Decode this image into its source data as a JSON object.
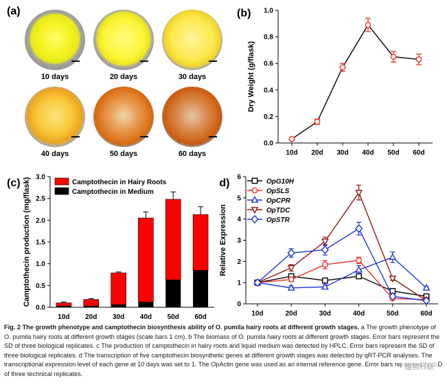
{
  "panel_a": {
    "letter": "(a)",
    "photos": [
      {
        "label": "10 days"
      },
      {
        "label": "20 days"
      },
      {
        "label": "30 days"
      },
      {
        "label": "40 days"
      },
      {
        "label": "50 days"
      },
      {
        "label": "60 days"
      }
    ]
  },
  "caption": {
    "fig": "Fig. 2",
    "title": "The growth phenotype and camptothecin biosynthesis ability of O. pumila hairy roots at different growth stages.",
    "text": "a The growth phenotype of O. pumila hairy roots at different growth stages (scale bars 1 cm). b The biomass of O. pumila hairy roots at different growth stages. Error bars represent the SD of three biological replicates. c The production of camptothecin in hairy roots and liquid medium was detected by HPLC. Error bars represent the SD of three biological replicates. d The transcription of five camptothecin biosynthetic genes at different growth stages was detected by qRT-PCR analyses. The transcriptional expression level of each gene at 10 days was set to 1. The OpActin gene was used as an internal reference gene. Error bars represent the SD of three technical replicates."
  },
  "watermark": "植物科研",
  "chart_data": [
    {
      "panel": "(b)",
      "type": "line",
      "categories": [
        "10d",
        "20d",
        "30d",
        "40d",
        "50d",
        "60d"
      ],
      "values": [
        0.03,
        0.16,
        0.57,
        0.89,
        0.65,
        0.63
      ],
      "errors": [
        0.01,
        0.02,
        0.03,
        0.05,
        0.04,
        0.04
      ],
      "ylabel": "Dry Weight (g/flask)",
      "ylim": [
        0.0,
        1.0
      ],
      "yticks": [
        "0.0",
        "0.2",
        "0.4",
        "0.6",
        "0.8",
        "1.0"
      ],
      "color": "#e8312b",
      "line_color": "#000000"
    },
    {
      "panel": "(c)",
      "type": "bar",
      "stacked": true,
      "categories": [
        "10d",
        "20d",
        "30d",
        "40d",
        "50d",
        "60d"
      ],
      "series": [
        {
          "name": "Camptothecin in Medium",
          "values": [
            0.03,
            0.03,
            0.06,
            0.12,
            0.63,
            0.85
          ],
          "errors": [
            0.01,
            0.01,
            0.02,
            0.04,
            0.07,
            0.1
          ],
          "color": "#000000"
        },
        {
          "name": "Camptothecin in Hairy Roots",
          "values": [
            0.07,
            0.15,
            0.73,
            1.93,
            1.85,
            1.28
          ],
          "errors": [
            0.02,
            0.02,
            0.02,
            0.14,
            0.17,
            0.18
          ],
          "color": "#ff0000"
        }
      ],
      "legend_order": [
        "Camptothecin in Hairy Roots",
        "Camptothecin in Medium"
      ],
      "ylabel": "Camptothecin production (mg/flask)",
      "ylim": [
        0.0,
        3.0
      ],
      "yticks": [
        "0.0",
        "0.5",
        "1.0",
        "1.5",
        "2.0",
        "2.5",
        "3.0"
      ]
    },
    {
      "panel": "(d)",
      "type": "line",
      "categories": [
        "10d",
        "20d",
        "30d",
        "40d",
        "50d",
        "60d"
      ],
      "ylabel": "Relative Expression",
      "ylim": [
        0,
        6
      ],
      "yticks": [
        "0",
        "1",
        "2",
        "3",
        "4",
        "5",
        "6"
      ],
      "series": [
        {
          "name": "OpG10H",
          "color": "#000000",
          "marker": "square",
          "values": [
            1.0,
            1.3,
            1.1,
            1.3,
            0.6,
            0.35
          ],
          "errors": [
            0.05,
            0.1,
            0.1,
            0.1,
            0.05,
            0.05
          ]
        },
        {
          "name": "OpSLS",
          "color": "#e8312b",
          "marker": "circle",
          "values": [
            1.0,
            1.15,
            1.85,
            2.05,
            0.25,
            0.2
          ],
          "errors": [
            0.05,
            0.1,
            0.2,
            0.15,
            0.05,
            0.05
          ]
        },
        {
          "name": "OpCPR",
          "color": "#1f35d8",
          "marker": "triangle-up",
          "values": [
            1.0,
            0.75,
            0.8,
            1.6,
            2.2,
            0.75
          ],
          "errors": [
            0.05,
            0.1,
            0.1,
            0.2,
            0.25,
            0.05
          ]
        },
        {
          "name": "OpTDC",
          "color": "#8b1a1a",
          "marker": "triangle-down",
          "values": [
            1.0,
            1.7,
            2.95,
            5.25,
            1.2,
            0.15
          ],
          "errors": [
            0.05,
            0.15,
            0.2,
            0.35,
            0.1,
            0.05
          ]
        },
        {
          "name": "OpSTR",
          "color": "#1f35d8",
          "marker": "diamond",
          "values": [
            1.0,
            2.4,
            2.55,
            3.55,
            0.35,
            0.15
          ],
          "errors": [
            0.05,
            0.2,
            0.25,
            0.3,
            0.05,
            0.05
          ]
        }
      ]
    }
  ]
}
